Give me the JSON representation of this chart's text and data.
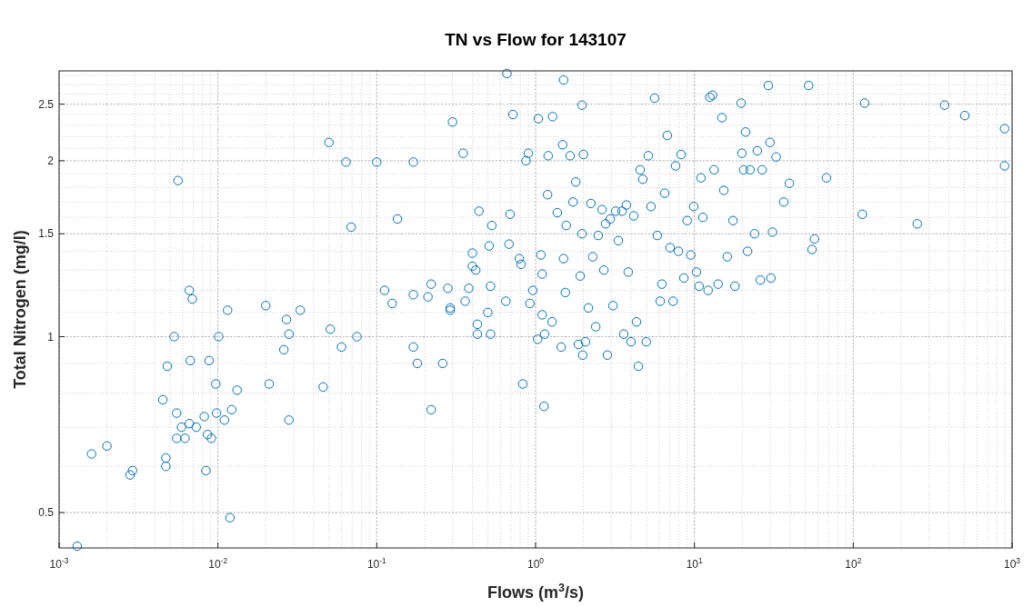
{
  "chart_data": {
    "type": "scatter",
    "title": "TN vs Flow for 143107",
    "xlabel": "Flows (m$^{3}$/s)",
    "ylabel": "Total Nitrogen (mg/l)",
    "log": "xy",
    "grid": true,
    "marker": "circle",
    "xlim": [
      0.001,
      1000
    ],
    "ylim": [
      0.435,
      2.85
    ],
    "xticks": [
      {
        "value": 0.001,
        "label": "10$^{-3}$"
      },
      {
        "value": 0.01,
        "label": "10$^{-2}$"
      },
      {
        "value": 0.1,
        "label": "10$^{-1}$"
      },
      {
        "value": 1,
        "label": "10$^{0}$"
      },
      {
        "value": 10,
        "label": "10$^{1}$"
      },
      {
        "value": 100,
        "label": "10$^{2}$"
      },
      {
        "value": 1000,
        "label": "10$^{3}$"
      }
    ],
    "yticks": [
      0.5,
      1,
      1.5,
      2,
      2.5
    ],
    "series": [
      {
        "color": "#0072bd",
        "x": [
          0.0013,
          0.0016,
          0.002,
          0.0028,
          0.0029,
          0.0045,
          0.0047,
          0.0047,
          0.0048,
          0.0053,
          0.0055,
          0.0056,
          0.0055,
          0.0059,
          0.0062,
          0.0066,
          0.0069,
          0.0067,
          0.0066,
          0.0073,
          0.0082,
          0.0084,
          0.0086,
          0.0091,
          0.0088,
          0.0097,
          0.0098,
          0.0101,
          0.011,
          0.0115,
          0.0119,
          0.0122,
          0.0132,
          0.02,
          0.021,
          0.026,
          0.027,
          0.028,
          0.028,
          0.033,
          0.046,
          0.05,
          0.051,
          0.06,
          0.064,
          0.069,
          0.075,
          0.1,
          0.112,
          0.125,
          0.135,
          0.17,
          0.17,
          0.17,
          0.18,
          0.21,
          0.22,
          0.22,
          0.26,
          0.29,
          0.28,
          0.3,
          0.29,
          0.36,
          0.38,
          0.35,
          0.4,
          0.4,
          0.42,
          0.43,
          0.43,
          0.44,
          0.5,
          0.51,
          0.52,
          0.52,
          0.53,
          0.65,
          0.66,
          0.68,
          0.69,
          0.72,
          0.79,
          0.81,
          0.83,
          0.87,
          0.9,
          0.92,
          0.96,
          1.03,
          1.08,
          1.1,
          1.1,
          1.13,
          1.14,
          1.04,
          1.19,
          1.2,
          1.27,
          1.28,
          1.37,
          1.45,
          1.5,
          1.48,
          1.5,
          1.54,
          1.56,
          1.65,
          1.72,
          1.79,
          1.86,
          1.91,
          1.96,
          1.96,
          1.98,
          2,
          2.06,
          2.15,
          2.23,
          2.29,
          2.39,
          2.48,
          2.62,
          2.69,
          2.76,
          2.83,
          2.95,
          3.07,
          3.19,
          3.32,
          3.5,
          3.59,
          3.73,
          3.83,
          3.99,
          4.15,
          4.32,
          4.44,
          4.55,
          4.73,
          4.98,
          5.12,
          5.33,
          5.61,
          5.84,
          6.09,
          6.24,
          6.5,
          6.75,
          7.03,
          7.34,
          7.61,
          7.93,
          8.25,
          8.58,
          9,
          9.48,
          9.9,
          10.3,
          10.7,
          11,
          11.3,
          12.2,
          12.5,
          13,
          13.3,
          14.1,
          14.9,
          15.3,
          16.1,
          17.5,
          18,
          19.7,
          19.9,
          20.4,
          21,
          21.6,
          22.4,
          23.9,
          24.9,
          26,
          26.7,
          29.2,
          29.9,
          30.3,
          31,
          32.7,
          36.5,
          39.6,
          52.4,
          55,
          57,
          67.8,
          114,
          118,
          253,
          376,
          504,
          897,
          897
        ],
        "values": [
          0.438,
          0.63,
          0.65,
          0.58,
          0.59,
          0.78,
          0.62,
          0.6,
          0.89,
          1,
          0.74,
          1.85,
          0.67,
          0.7,
          0.67,
          1.2,
          1.16,
          0.91,
          0.71,
          0.7,
          0.73,
          0.59,
          0.68,
          0.67,
          0.91,
          0.83,
          0.74,
          1,
          0.72,
          1.11,
          0.49,
          0.75,
          0.81,
          1.13,
          0.83,
          0.95,
          1.07,
          1.01,
          0.72,
          1.11,
          0.82,
          2.15,
          1.03,
          0.96,
          1.99,
          1.54,
          1,
          1.99,
          1.2,
          1.14,
          1.59,
          0.96,
          1.18,
          1.99,
          0.9,
          1.17,
          1.23,
          0.75,
          0.9,
          1.12,
          1.21,
          2.33,
          1.11,
          1.15,
          1.21,
          2.06,
          1.39,
          1.32,
          1.3,
          1.01,
          1.05,
          1.64,
          1.1,
          1.43,
          1.22,
          1.01,
          1.55,
          1.15,
          2.82,
          1.44,
          1.62,
          2.4,
          1.36,
          1.33,
          0.83,
          2,
          2.06,
          1.14,
          1.2,
          0.99,
          1.38,
          1.28,
          1.09,
          0.76,
          1.01,
          2.36,
          1.75,
          2.04,
          1.06,
          2.38,
          1.63,
          0.96,
          2.75,
          2.13,
          1.36,
          1.19,
          1.55,
          2.04,
          1.7,
          1.84,
          0.97,
          1.27,
          2.49,
          1.5,
          0.93,
          2.05,
          0.98,
          1.12,
          1.69,
          1.37,
          1.04,
          1.49,
          1.65,
          1.3,
          1.56,
          0.93,
          1.59,
          1.13,
          1.64,
          1.46,
          1.64,
          1.01,
          1.68,
          1.29,
          0.98,
          1.61,
          1.06,
          0.89,
          1.93,
          1.86,
          0.98,
          2.04,
          1.67,
          2.56,
          1.49,
          1.15,
          1.23,
          1.76,
          2.21,
          1.42,
          1.15,
          1.96,
          1.4,
          2.05,
          1.26,
          1.58,
          1.38,
          1.67,
          1.29,
          1.22,
          1.87,
          1.6,
          1.2,
          2.57,
          2.59,
          1.93,
          1.23,
          2.37,
          1.78,
          1.37,
          1.58,
          1.22,
          2.51,
          2.06,
          1.93,
          2.24,
          1.4,
          1.93,
          1.5,
          2.08,
          1.25,
          1.93,
          2.69,
          2.15,
          1.26,
          1.51,
          2.03,
          1.7,
          1.83,
          2.69,
          1.41,
          1.47,
          1.87,
          1.62,
          2.51,
          1.56,
          2.49,
          2.39,
          2.27,
          1.96
        ]
      }
    ]
  }
}
